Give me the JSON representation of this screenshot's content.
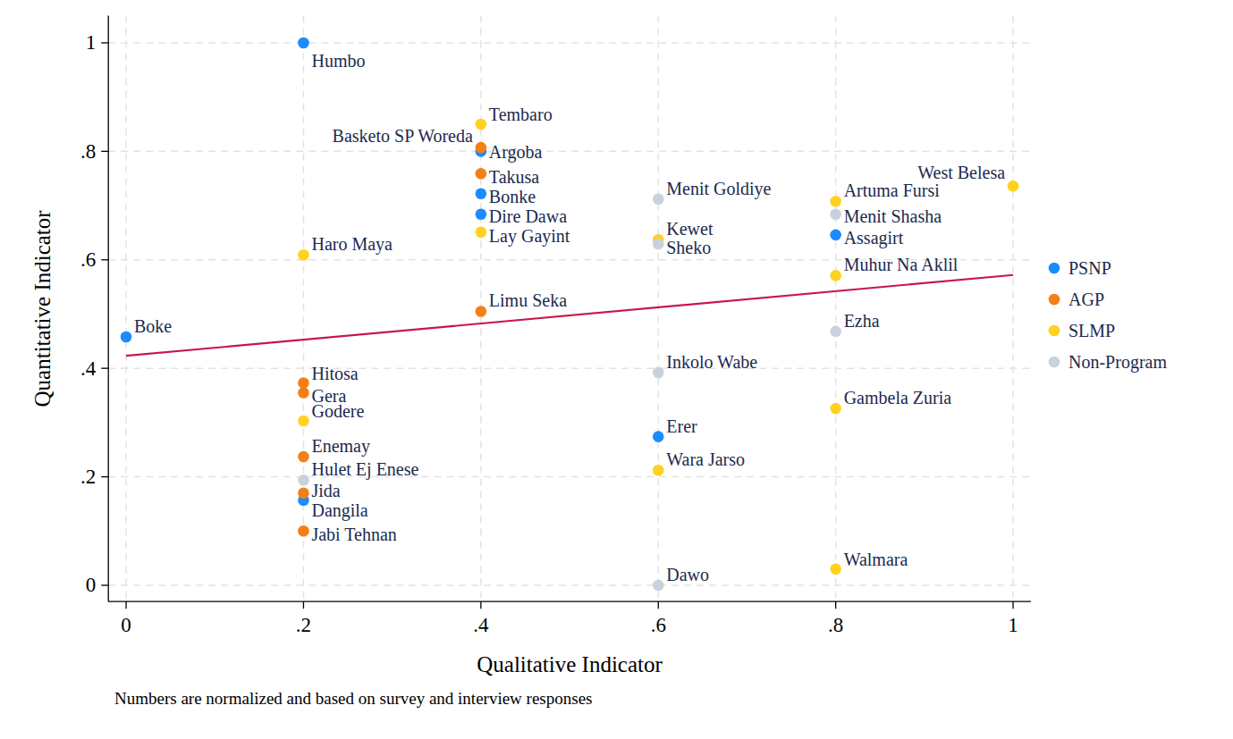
{
  "chart_data": {
    "type": "scatter",
    "x_label": "Qualitative Indicator",
    "y_label": "Quantitative Indicator",
    "note": "Numbers are normalized and based on survey and interview responses",
    "xlim": [
      -0.02,
      1.02
    ],
    "ylim": [
      -0.03,
      1.05
    ],
    "xticks": [
      0,
      {
        "value": 0.2,
        "label": ".2"
      },
      {
        "value": 0.4,
        "label": ".4"
      },
      {
        "value": 0.6,
        "label": ".6"
      },
      {
        "value": 0.8,
        "label": ".8"
      },
      1
    ],
    "yticks": [
      0,
      {
        "value": 0.2,
        "label": ".2"
      },
      {
        "value": 0.4,
        "label": ".4"
      },
      {
        "value": 0.6,
        "label": ".6"
      },
      {
        "value": 0.8,
        "label": ".8"
      },
      1
    ],
    "grid": true,
    "legend": "right",
    "marker": "circle",
    "series": [
      {
        "name": "PSNP",
        "color": "#1a8cff",
        "labels": [
          "Humbo",
          "Basketo SP Woreda",
          "Bonke",
          "Dire Dawa",
          "Assagirt",
          "Boke",
          "Erer",
          "Dangila"
        ],
        "x": [
          0.2,
          0.4,
          0.4,
          0.4,
          0.8,
          0,
          0.6,
          0.2
        ],
        "values": [
          1.0,
          0.8,
          0.722,
          0.684,
          0.646,
          0.458,
          0.274,
          0.157
        ]
      },
      {
        "name": "AGP",
        "color": "#f57f17",
        "labels": [
          "Argoba",
          "Takusa",
          "Limu Seka",
          "Hitosa",
          "Gera",
          "Enemay",
          "Jida",
          "Jabi Tehnan"
        ],
        "x": [
          0.4,
          0.4,
          0.4,
          0.2,
          0.2,
          0.2,
          0.2,
          0.2
        ],
        "values": [
          0.807,
          0.759,
          0.505,
          0.373,
          0.355,
          0.237,
          0.17,
          0.1
        ]
      },
      {
        "name": "SLMP",
        "color": "#ffd21f",
        "labels": [
          "Tembaro",
          "Lay Gayint",
          "Haro Maya",
          "Godere",
          "Kewet",
          "Wara Jarso",
          "Artuma Fursi",
          "Muhur Na Aklil",
          "Gambela Zuria",
          "Walmara",
          "West Belesa"
        ],
        "x": [
          0.4,
          0.4,
          0.2,
          0.2,
          0.6,
          0.6,
          0.8,
          0.8,
          0.8,
          0.8,
          1
        ],
        "values": [
          0.85,
          0.651,
          0.609,
          0.303,
          0.637,
          0.212,
          0.708,
          0.571,
          0.326,
          0.03,
          0.736
        ]
      },
      {
        "name": "Non-Program",
        "color": "#c9d1dc",
        "labels": [
          "Menit Goldiye",
          "Sheko",
          "Inkolo Wabe",
          "Dawo",
          "Menit Shasha",
          "Ezha",
          "Hulet Ej Enese"
        ],
        "x": [
          0.6,
          0.6,
          0.6,
          0.6,
          0.8,
          0.8,
          0.2
        ],
        "values": [
          0.712,
          0.629,
          0.392,
          0.0,
          0.684,
          0.468,
          0.194
        ]
      }
    ],
    "fit_line": {
      "type": "line",
      "color": "#c8174b",
      "x": [
        0,
        1
      ],
      "values": [
        0.423,
        0.572
      ]
    }
  }
}
